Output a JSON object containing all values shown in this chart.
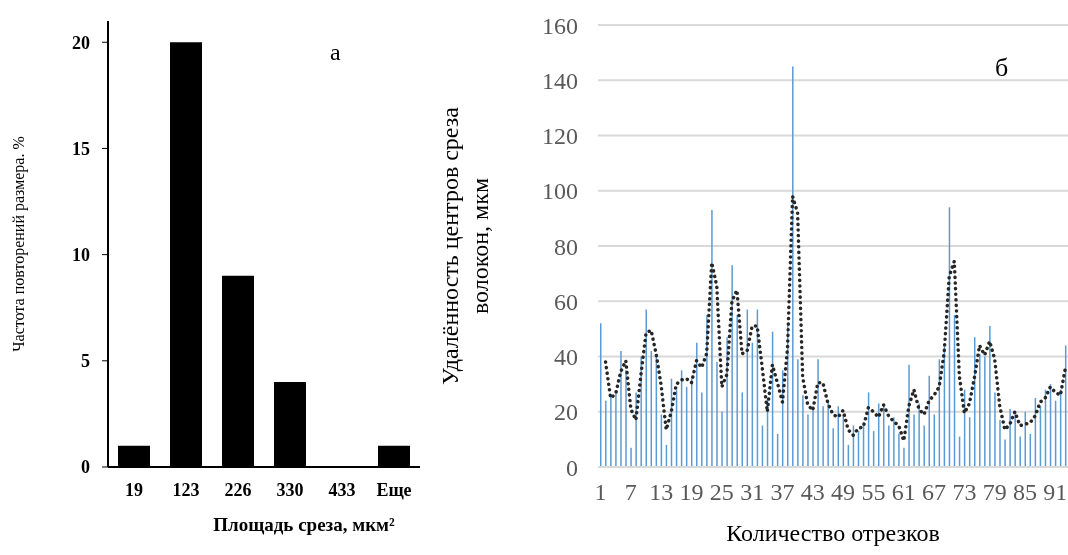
{
  "chart_data": [
    {
      "type": "bar",
      "categories": [
        "19",
        "123",
        "226",
        "330",
        "433",
        "Еще"
      ],
      "values": [
        1,
        20,
        9,
        4,
        0,
        1
      ],
      "color": "#000000",
      "ylim": [
        0,
        21
      ],
      "yticks": [
        0,
        5,
        10,
        15,
        20
      ],
      "xlabel": "Площадь среза, мкм²",
      "ylabel": "Частота повторений размера. %",
      "annotations": [
        "а"
      ]
    },
    {
      "type": "bar",
      "categories": [
        "1",
        null,
        null,
        null,
        null,
        null,
        "7",
        null,
        null,
        null,
        null,
        null,
        "13",
        null,
        null,
        null,
        null,
        null,
        "19",
        null,
        null,
        null,
        null,
        null,
        "25",
        null,
        null,
        null,
        null,
        null,
        "31",
        null,
        null,
        null,
        null,
        null,
        "37",
        null,
        null,
        null,
        null,
        null,
        "43",
        null,
        null,
        null,
        null,
        null,
        "49",
        null,
        null,
        null,
        null,
        null,
        "55",
        null,
        null,
        null,
        null,
        null,
        "61",
        null,
        null,
        null,
        null,
        null,
        "67",
        null,
        null,
        null,
        null,
        null,
        "73",
        null,
        null,
        null,
        null,
        null,
        "79",
        null,
        null,
        null,
        null,
        null,
        "85",
        null,
        null,
        null,
        null,
        null,
        "91",
        null,
        null
      ],
      "series": [
        {
          "type": "bar",
          "color": "#5b9bd5",
          "values": [
            52,
            24,
            26,
            27,
            42,
            35,
            7,
            27,
            40,
            57,
            42,
            40,
            19,
            8,
            32,
            28,
            35,
            29,
            32,
            45,
            27,
            55,
            93,
            38,
            20,
            47,
            73,
            55,
            27,
            57,
            45,
            57,
            15,
            25,
            49,
            12,
            35,
            51,
            145,
            39,
            26,
            19,
            22,
            39,
            22,
            24,
            14,
            22,
            19,
            8,
            15,
            13,
            16,
            27,
            13,
            23,
            22,
            15,
            18,
            12,
            7,
            37,
            19,
            23,
            15,
            33,
            19,
            39,
            44,
            94,
            55,
            11,
            28,
            18,
            47,
            41,
            40,
            51,
            27,
            17,
            10,
            21,
            19,
            11,
            20,
            12,
            25,
            22,
            28,
            30,
            24,
            28,
            44
          ]
        },
        {
          "type": "line",
          "color": "#262626",
          "line_style": "dotted",
          "values": [
            null,
            38,
            25,
            26.5,
            34.5,
            38.5,
            21,
            17,
            33.5,
            48.5,
            49.5,
            41,
            29.5,
            13.5,
            20,
            30,
            31.5,
            32,
            30.5,
            38.5,
            36,
            41,
            74,
            65.5,
            29,
            33.5,
            60,
            64,
            41,
            42,
            51,
            51,
            36,
            20,
            37,
            30.5,
            23.5,
            43,
            98,
            92,
            32.5,
            22.5,
            20.5,
            30.5,
            30.5,
            23,
            19,
            18,
            20.5,
            13.5,
            11.5,
            14,
            14.5,
            21.5,
            20,
            18,
            22.5,
            18.5,
            16.5,
            15,
            9.5,
            22,
            28,
            21,
            19,
            24,
            26,
            29,
            41.5,
            69,
            74.5,
            33,
            19.5,
            23,
            32.5,
            44,
            40.5,
            45.5,
            39,
            22,
            13.5,
            15.5,
            20,
            15,
            15.5,
            16,
            18.5,
            23.5,
            25,
            29,
            27,
            26,
            36
          ]
        }
      ],
      "ylim": [
        0,
        160
      ],
      "yticks": [
        0,
        20,
        40,
        60,
        80,
        100,
        120,
        140,
        160
      ],
      "grid": "y",
      "xlabel": "Количество отрезков",
      "ylabel": "Удалённость центров среза волокон, мкм",
      "annotations": [
        "б"
      ]
    }
  ]
}
